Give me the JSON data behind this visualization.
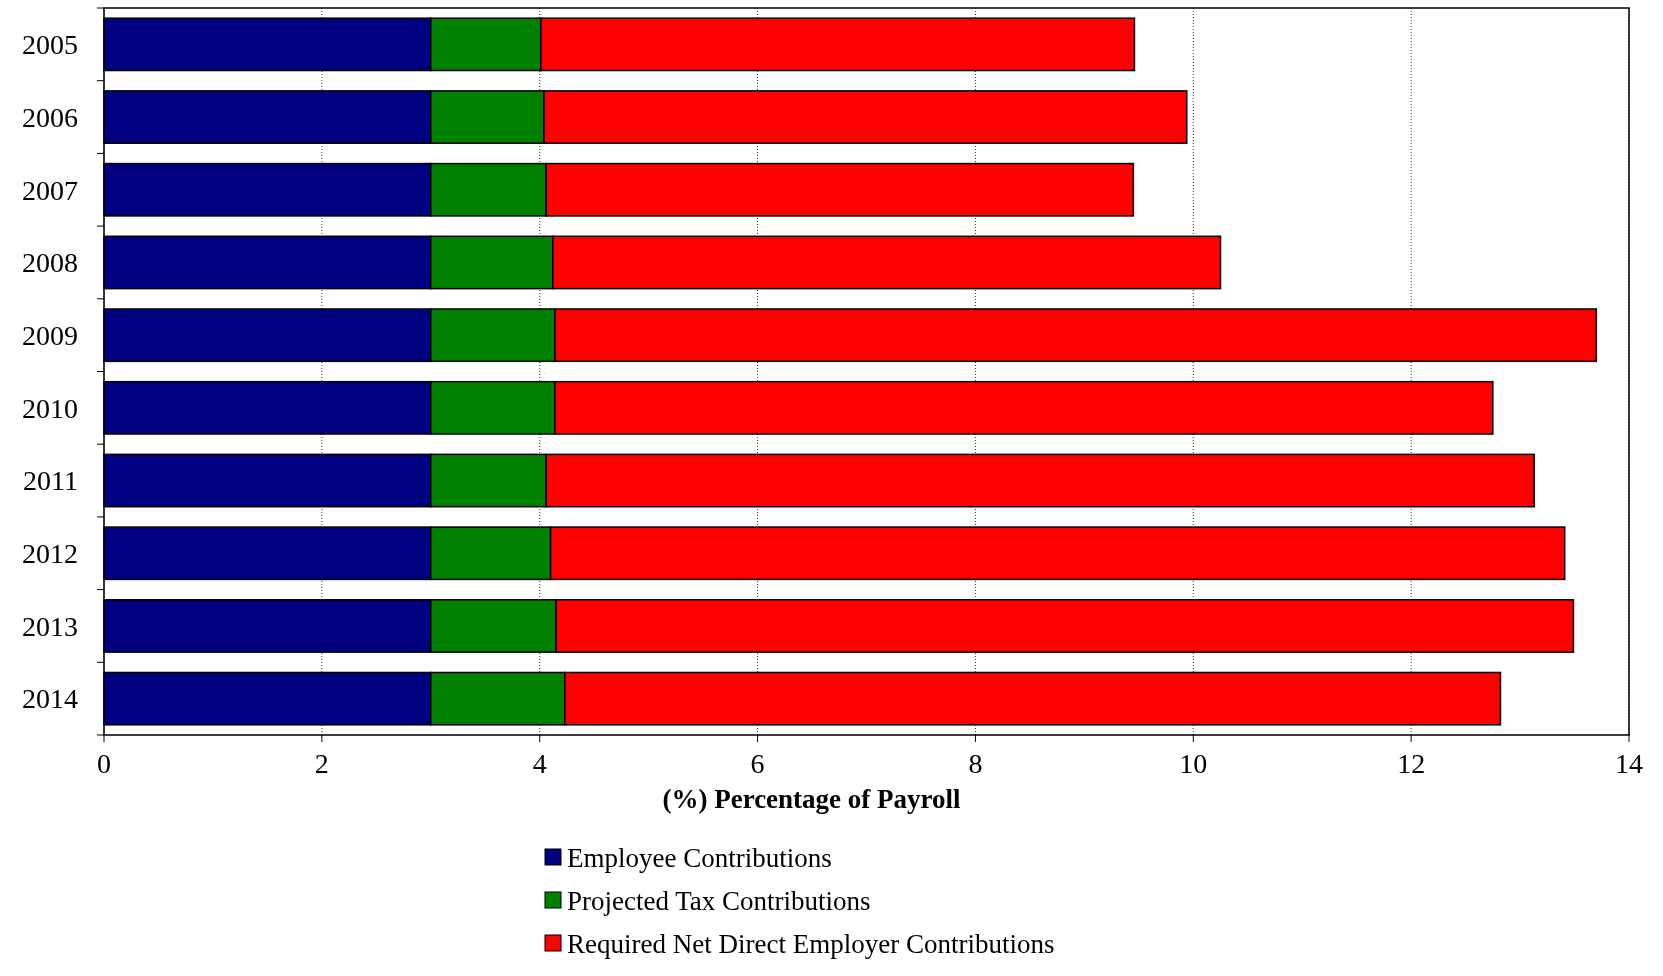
{
  "chart_data": {
    "type": "bar",
    "orientation": "horizontal",
    "stacked": true,
    "categories": [
      "2005",
      "2006",
      "2007",
      "2008",
      "2009",
      "2010",
      "2011",
      "2012",
      "2013",
      "2014"
    ],
    "series": [
      {
        "name": "Employee Contributions",
        "color": "#000080",
        "values": [
          3,
          3,
          3,
          3,
          3,
          3,
          3,
          3,
          3,
          3
        ]
      },
      {
        "name": "Projected Tax Contributions",
        "color": "#008000",
        "values": [
          1.01,
          1.04,
          1.06,
          1.12,
          1.14,
          1.14,
          1.06,
          1.1,
          1.15,
          1.23
        ]
      },
      {
        "name": "Required Net Direct Employer Contributions",
        "color": "#ff0000",
        "values": [
          5.45,
          5.9,
          5.39,
          6.13,
          9.56,
          8.61,
          9.07,
          9.31,
          9.34,
          8.59
        ]
      }
    ],
    "xlabel": "(%) Percentage of Payroll",
    "xlim": [
      0,
      14
    ],
    "xticks": [
      0,
      2,
      4,
      6,
      8,
      10,
      12,
      14
    ],
    "grid": "x",
    "legend": "bottom"
  }
}
